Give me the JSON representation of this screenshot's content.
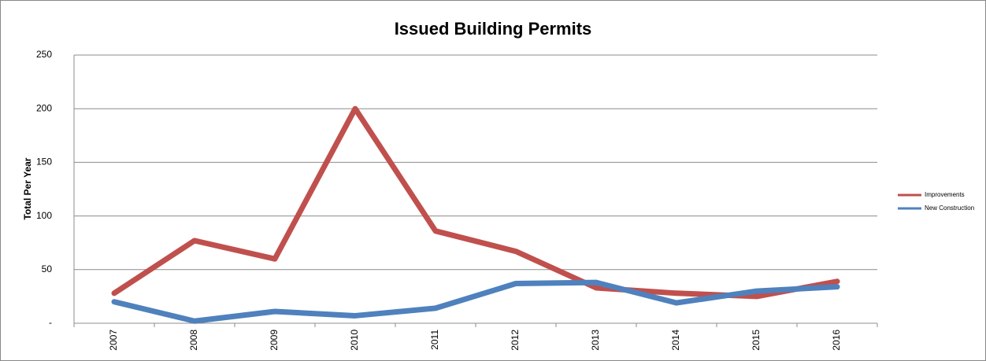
{
  "chart_data": {
    "type": "line",
    "title": "Issued Building Permits",
    "y_label": "Total Per Year",
    "categories": [
      "2007",
      "2008",
      "2009",
      "2010",
      "2011",
      "2012",
      "2013",
      "2014",
      "2015",
      "2016"
    ],
    "series": [
      {
        "name": "Improvements",
        "color": "#c0504d",
        "values": [
          28,
          77,
          60,
          200,
          86,
          67,
          33,
          28,
          25,
          39
        ]
      },
      {
        "name": "New Construction",
        "color": "#4f81bd",
        "values": [
          20,
          2,
          11,
          7,
          14,
          37,
          38,
          19,
          30,
          34
        ]
      }
    ],
    "ylim": [
      0,
      250
    ],
    "yticks": [
      {
        "value": 0,
        "label": "-"
      },
      50,
      100,
      150,
      200,
      250
    ],
    "grid": true,
    "legend": "right"
  }
}
